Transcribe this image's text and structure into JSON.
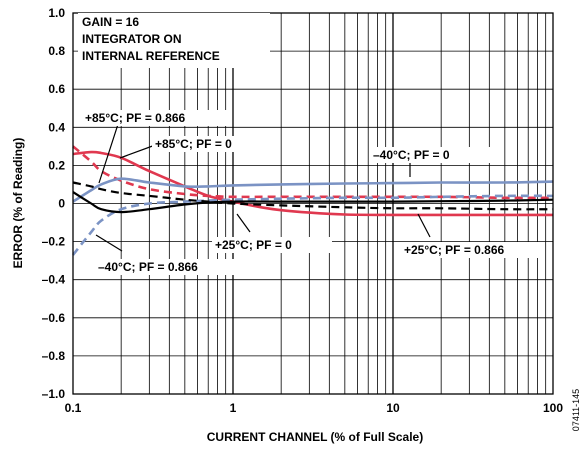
{
  "chart_data": {
    "type": "line",
    "xlabel": "CURRENT CHANNEL (% of Full Scale)",
    "ylabel": "ERROR (% of Reading)",
    "xscale": "log",
    "xlim": [
      0.1,
      100
    ],
    "ylim": [
      -1.0,
      1.0
    ],
    "x_ticks": [
      "0.1",
      "1",
      "10",
      "100"
    ],
    "y_ticks": [
      "1.0",
      "0.8",
      "0.6",
      "0.4",
      "0.2",
      "0",
      "–0.2",
      "–0.4",
      "–0.6",
      "–0.8",
      "–1.0"
    ],
    "grid": true,
    "conditions": [
      "GAIN = 16",
      "INTEGRATOR ON",
      "INTERNAL REFERENCE"
    ],
    "figure_id": "07411-145",
    "colors": {
      "red": "#e0384f",
      "blue": "#7b93c4",
      "black": "#000000"
    },
    "series": [
      {
        "name": "+85°C; PF = 0",
        "color": "#e0384f",
        "dash": "solid",
        "x": [
          0.1,
          0.13,
          0.15,
          0.2,
          0.3,
          0.5,
          0.7,
          1,
          1.5,
          2,
          3,
          5,
          10,
          20,
          50,
          100
        ],
        "y": [
          0.26,
          0.27,
          0.265,
          0.24,
          0.17,
          0.09,
          0.04,
          0.01,
          -0.02,
          -0.035,
          -0.048,
          -0.058,
          -0.06,
          -0.06,
          -0.06,
          -0.06
        ]
      },
      {
        "name": "+85°C; PF = 0.866",
        "color": "#e0384f",
        "dash": "dashed",
        "x": [
          0.1,
          0.13,
          0.15,
          0.2,
          0.3,
          0.5,
          0.7,
          1,
          2,
          5,
          10,
          20,
          50,
          100
        ],
        "y": [
          0.3,
          0.22,
          0.17,
          0.12,
          0.075,
          0.05,
          0.04,
          0.035,
          0.035,
          0.035,
          0.035,
          0.035,
          0.03,
          0.03
        ]
      },
      {
        "name": "–40°C; PF = 0",
        "color": "#7b93c4",
        "dash": "solid",
        "x": [
          0.1,
          0.13,
          0.15,
          0.2,
          0.3,
          0.5,
          0.7,
          1,
          2,
          5,
          10,
          20,
          50,
          100
        ],
        "y": [
          0.01,
          0.07,
          0.1,
          0.13,
          0.11,
          0.09,
          0.09,
          0.095,
          0.1,
          0.105,
          0.107,
          0.11,
          0.11,
          0.115
        ]
      },
      {
        "name": "–40°C; PF = 0.866",
        "color": "#7b93c4",
        "dash": "dashed",
        "x": [
          0.1,
          0.13,
          0.15,
          0.2,
          0.3,
          0.5,
          0.7,
          1,
          2,
          5,
          10,
          20,
          50,
          100
        ],
        "y": [
          -0.27,
          -0.15,
          -0.09,
          -0.03,
          0.0,
          0.01,
          0.015,
          0.02,
          0.025,
          0.03,
          0.03,
          0.035,
          0.04,
          0.04
        ]
      },
      {
        "name": "+25°C; PF = 0",
        "color": "#000000",
        "dash": "solid",
        "x": [
          0.1,
          0.13,
          0.15,
          0.2,
          0.3,
          0.5,
          0.7,
          1,
          2,
          5,
          10,
          20,
          50,
          100
        ],
        "y": [
          0.06,
          0.0,
          -0.03,
          -0.045,
          -0.03,
          -0.005,
          0.005,
          0.01,
          0.01,
          0.01,
          0.01,
          0.012,
          0.015,
          0.02
        ]
      },
      {
        "name": "+25°C; PF = 0.866",
        "color": "#000000",
        "dash": "dashed",
        "x": [
          0.1,
          0.13,
          0.15,
          0.2,
          0.3,
          0.5,
          0.7,
          1,
          2,
          5,
          10,
          20,
          50,
          100
        ],
        "y": [
          0.11,
          0.09,
          0.075,
          0.055,
          0.04,
          0.02,
          0.01,
          0.0,
          -0.01,
          -0.02,
          -0.025,
          -0.025,
          -0.03,
          -0.03
        ]
      }
    ],
    "annotations": [
      {
        "text": "+85°C; PF = 0.866",
        "series": "+85°C; PF = 0.866"
      },
      {
        "text": "+85°C; PF = 0",
        "series": "+85°C; PF = 0"
      },
      {
        "text": "–40°C; PF = 0",
        "series": "–40°C; PF = 0"
      },
      {
        "text": "+25°C; PF = 0",
        "series": "+25°C; PF = 0"
      },
      {
        "text": "+25°C; PF = 0.866",
        "series": "+25°C; PF = 0.866"
      },
      {
        "text": "–40°C; PF = 0.866",
        "series": "–40°C; PF = 0.866"
      }
    ]
  }
}
